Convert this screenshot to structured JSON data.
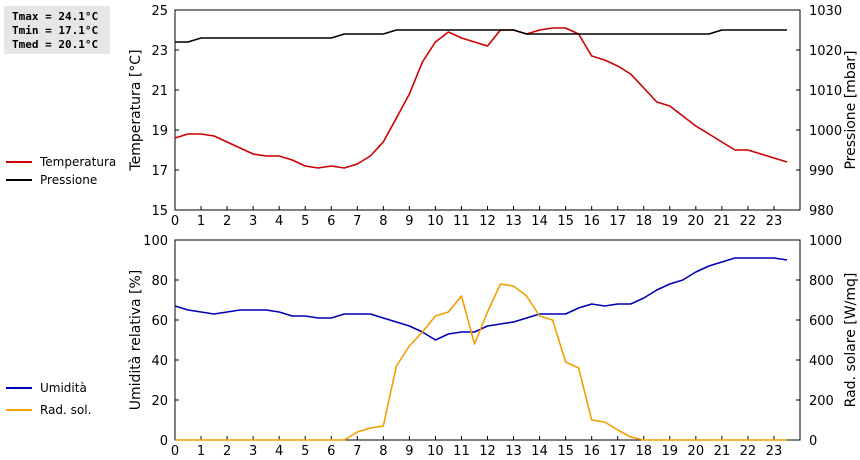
{
  "stats": {
    "tmax": "Tmax = 24.1°C",
    "tmin": "Tmin = 17.1°C",
    "tmed": "Tmed = 20.1°C"
  },
  "legend_top": [
    {
      "label": "Temperatura",
      "color": "#cc0000"
    },
    {
      "label": "Pressione",
      "color": "#000000"
    }
  ],
  "legend_bottom": [
    {
      "label": "Umidità",
      "color": "#0000b4"
    },
    {
      "label": "Rad. sol.",
      "color": "#f0a000"
    }
  ],
  "chart_data": [
    {
      "type": "line",
      "ylabel": "Temperatura [°C]",
      "y2label": "Pressione [mbar]",
      "xlim": [
        0,
        24
      ],
      "ylim": [
        15,
        25
      ],
      "y2lim": [
        980,
        1030
      ],
      "xticks": [
        0,
        1,
        2,
        3,
        4,
        5,
        6,
        7,
        8,
        9,
        10,
        11,
        12,
        13,
        14,
        15,
        16,
        17,
        18,
        19,
        20,
        21,
        22,
        23
      ],
      "yticks": [
        15,
        17,
        19,
        21,
        23,
        25
      ],
      "y2ticks": [
        980,
        990,
        1000,
        1010,
        1020,
        1030
      ],
      "grid": false,
      "series": [
        {
          "name": "Temperatura",
          "color": "#cc0000",
          "axis": "left",
          "x": [
            0,
            0.5,
            1,
            1.5,
            2,
            2.5,
            3,
            3.5,
            4,
            4.5,
            5,
            5.5,
            6,
            6.5,
            7,
            7.5,
            8,
            8.5,
            9,
            9.5,
            10,
            10.5,
            11,
            11.5,
            12,
            12.5,
            13,
            13.5,
            14,
            14.5,
            15,
            15.5,
            16,
            16.5,
            17,
            17.5,
            18,
            18.5,
            19,
            19.5,
            20,
            20.5,
            21,
            21.5,
            22,
            22.5,
            23,
            23.5
          ],
          "values": [
            18.6,
            18.8,
            18.8,
            18.7,
            18.4,
            18.1,
            17.8,
            17.7,
            17.7,
            17.5,
            17.2,
            17.1,
            17.2,
            17.1,
            17.3,
            17.7,
            18.4,
            19.6,
            20.8,
            22.4,
            23.4,
            23.9,
            23.6,
            23.4,
            23.2,
            24.0,
            24.0,
            23.8,
            24.0,
            24.1,
            24.1,
            23.8,
            22.7,
            22.5,
            22.2,
            21.8,
            21.1,
            20.4,
            20.2,
            19.7,
            19.2,
            18.8,
            18.4,
            18.0,
            18.0,
            17.8,
            17.6,
            17.4
          ]
        },
        {
          "name": "Pressione",
          "color": "#000000",
          "axis": "right",
          "x": [
            0,
            0.5,
            1,
            1.5,
            2,
            2.5,
            3,
            3.5,
            4,
            4.5,
            5,
            5.5,
            6,
            6.5,
            7,
            7.5,
            8,
            8.5,
            9,
            9.5,
            10,
            10.5,
            11,
            11.5,
            12,
            12.5,
            13,
            13.5,
            14,
            14.5,
            15,
            15.5,
            16,
            16.5,
            17,
            17.5,
            18,
            18.5,
            19,
            19.5,
            20,
            20.5,
            21,
            21.5,
            22,
            22.5,
            23,
            23.5
          ],
          "values": [
            1022,
            1022,
            1023,
            1023,
            1023,
            1023,
            1023,
            1023,
            1023,
            1023,
            1023,
            1023,
            1023,
            1024,
            1024,
            1024,
            1024,
            1025,
            1025,
            1025,
            1025,
            1025,
            1025,
            1025,
            1025,
            1025,
            1025,
            1024,
            1024,
            1024,
            1024,
            1024,
            1024,
            1024,
            1024,
            1024,
            1024,
            1024,
            1024,
            1024,
            1024,
            1024,
            1025,
            1025,
            1025,
            1025,
            1025,
            1025
          ]
        }
      ]
    },
    {
      "type": "line",
      "ylabel": "Umidità relativa [%]",
      "y2label": "Rad. solare [W/mq]",
      "xlim": [
        0,
        24
      ],
      "ylim": [
        0,
        100
      ],
      "y2lim": [
        0,
        1000
      ],
      "xticks": [
        0,
        1,
        2,
        3,
        4,
        5,
        6,
        7,
        8,
        9,
        10,
        11,
        12,
        13,
        14,
        15,
        16,
        17,
        18,
        19,
        20,
        21,
        22,
        23
      ],
      "yticks": [
        0,
        20,
        40,
        60,
        80,
        100
      ],
      "y2ticks": [
        0,
        200,
        400,
        600,
        800,
        1000
      ],
      "grid": false,
      "series": [
        {
          "name": "Umidità",
          "color": "#0000b4",
          "axis": "left",
          "x": [
            0,
            0.5,
            1,
            1.5,
            2,
            2.5,
            3,
            3.5,
            4,
            4.5,
            5,
            5.5,
            6,
            6.5,
            7,
            7.5,
            8,
            8.5,
            9,
            9.5,
            10,
            10.5,
            11,
            11.5,
            12,
            12.5,
            13,
            13.5,
            14,
            14.5,
            15,
            15.5,
            16,
            16.5,
            17,
            17.5,
            18,
            18.5,
            19,
            19.5,
            20,
            20.5,
            21,
            21.5,
            22,
            22.5,
            23,
            23.5
          ],
          "values": [
            67,
            65,
            64,
            63,
            64,
            65,
            65,
            65,
            64,
            62,
            62,
            61,
            61,
            63,
            63,
            63,
            61,
            59,
            57,
            54,
            50,
            53,
            54,
            54,
            57,
            58,
            59,
            61,
            63,
            63,
            63,
            66,
            68,
            67,
            68,
            68,
            71,
            75,
            78,
            80,
            84,
            87,
            89,
            91,
            91,
            91,
            91,
            90
          ]
        },
        {
          "name": "Rad. sol.",
          "color": "#f0a000",
          "axis": "right",
          "x": [
            0,
            0.5,
            1,
            1.5,
            2,
            2.5,
            3,
            3.5,
            4,
            4.5,
            5,
            5.5,
            6,
            6.5,
            7,
            7.5,
            8,
            8.5,
            9,
            9.5,
            10,
            10.5,
            11,
            11.5,
            12,
            12.5,
            13,
            13.5,
            14,
            14.5,
            15,
            15.5,
            16,
            16.5,
            17,
            17.5,
            18,
            18.5,
            19,
            19.5,
            20,
            20.5,
            21,
            21.5,
            22,
            22.5,
            23,
            23.5
          ],
          "values": [
            0,
            0,
            0,
            0,
            0,
            0,
            0,
            0,
            0,
            0,
            0,
            0,
            0,
            0,
            40,
            60,
            70,
            370,
            470,
            540,
            620,
            640,
            720,
            480,
            640,
            780,
            770,
            720,
            620,
            600,
            390,
            360,
            100,
            90,
            50,
            15,
            0,
            0,
            0,
            0,
            0,
            0,
            0,
            0,
            0,
            0,
            0,
            0
          ]
        }
      ]
    }
  ]
}
